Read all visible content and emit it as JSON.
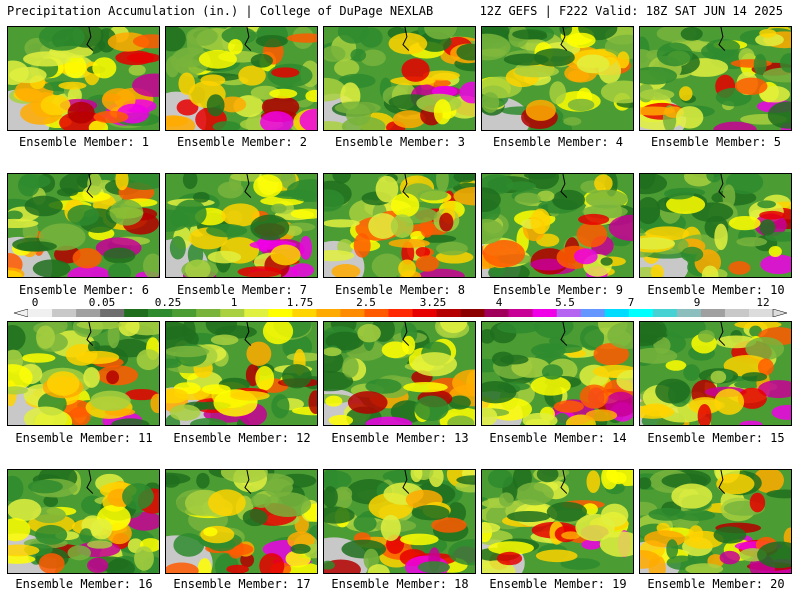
{
  "header": {
    "left": "Precipitation Accumulation (in.) | College of DuPage NEXLAB",
    "right": "12Z GEFS | F222 Valid: 18Z SAT JUN 14 2025"
  },
  "label_prefix": "Ensemble Member: ",
  "members": [
    1,
    2,
    3,
    4,
    5,
    6,
    7,
    8,
    9,
    10,
    11,
    12,
    13,
    14,
    15,
    16,
    17,
    18,
    19,
    20
  ],
  "colorbar": {
    "tick_labels": [
      "0",
      "0.05",
      "0.25",
      "1",
      "1.75",
      "2.5",
      "3.25",
      "4",
      "5.5",
      "7",
      "9",
      "12"
    ],
    "colors": [
      "#f0f0f0",
      "#c8c8c8",
      "#a0a0a0",
      "#6e6e6e",
      "#1e6e1e",
      "#2e8b2e",
      "#4c9c34",
      "#78b43c",
      "#a8d040",
      "#e0f040",
      "#ffff00",
      "#ffd400",
      "#ffaa00",
      "#ff8c00",
      "#ff5a00",
      "#ff2800",
      "#e60000",
      "#b40000",
      "#8c0000",
      "#a0005a",
      "#c80096",
      "#f000e6",
      "#b464f0",
      "#6496ff",
      "#00dcff",
      "#00ffff",
      "#46d2d2",
      "#8cbebe",
      "#a0a0a0",
      "#c8c8c8",
      "#dcdcdc"
    ]
  }
}
